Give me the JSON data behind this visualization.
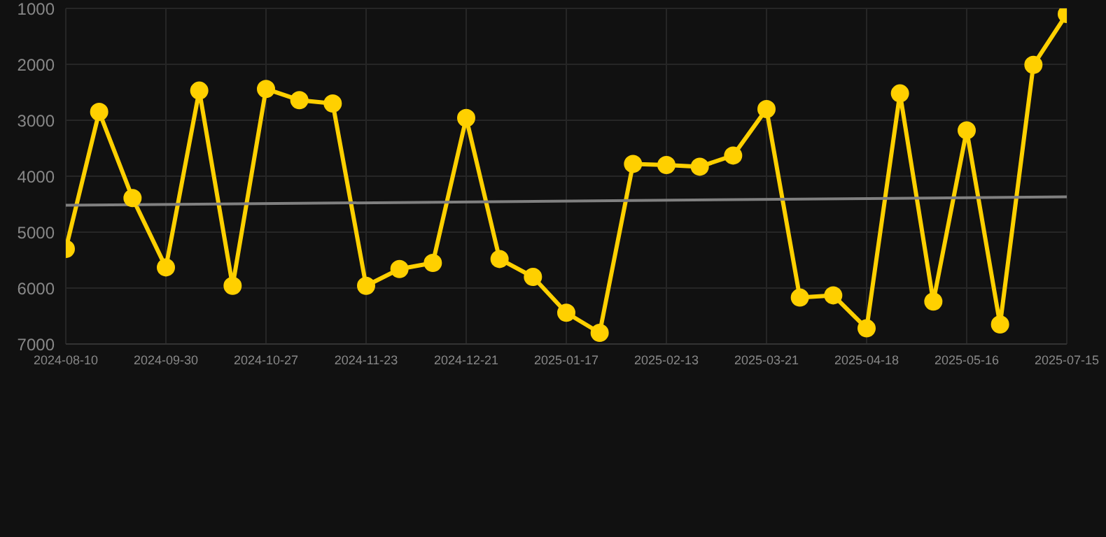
{
  "chart_data": {
    "type": "line",
    "categories": [
      "2024-08-10",
      null,
      null,
      "2024-09-30",
      null,
      null,
      "2024-10-27",
      null,
      null,
      "2024-11-23",
      null,
      null,
      "2024-12-21",
      null,
      null,
      "2025-01-17",
      null,
      null,
      "2025-02-13",
      null,
      null,
      "2025-03-21",
      null,
      null,
      "2025-04-18",
      null,
      null,
      "2025-05-16",
      null,
      null,
      "2025-07-15"
    ],
    "series": [
      {
        "color": "#ffd000",
        "marker": "circle",
        "values": [
          5300,
          2850,
          4390,
          5630,
          2470,
          5960,
          2440,
          2640,
          2700,
          5960,
          5660,
          5550,
          2960,
          5480,
          5800,
          6440,
          6800,
          3780,
          3800,
          3830,
          3630,
          2800,
          6170,
          6130,
          6720,
          2520,
          6240,
          3180,
          6650,
          2010,
          1100
        ]
      },
      {
        "type": "line",
        "color": "#808080",
        "marker": "none",
        "values": [
          4520,
          null,
          null,
          null,
          null,
          null,
          null,
          null,
          null,
          null,
          null,
          null,
          null,
          null,
          null,
          null,
          null,
          null,
          null,
          null,
          null,
          null,
          null,
          null,
          null,
          null,
          null,
          null,
          null,
          null,
          4370
        ]
      }
    ],
    "ylim": [
      7000,
      1000
    ],
    "yticks": [
      1000,
      2000,
      3000,
      4000,
      5000,
      6000,
      7000
    ],
    "grid": true,
    "legend": false
  }
}
